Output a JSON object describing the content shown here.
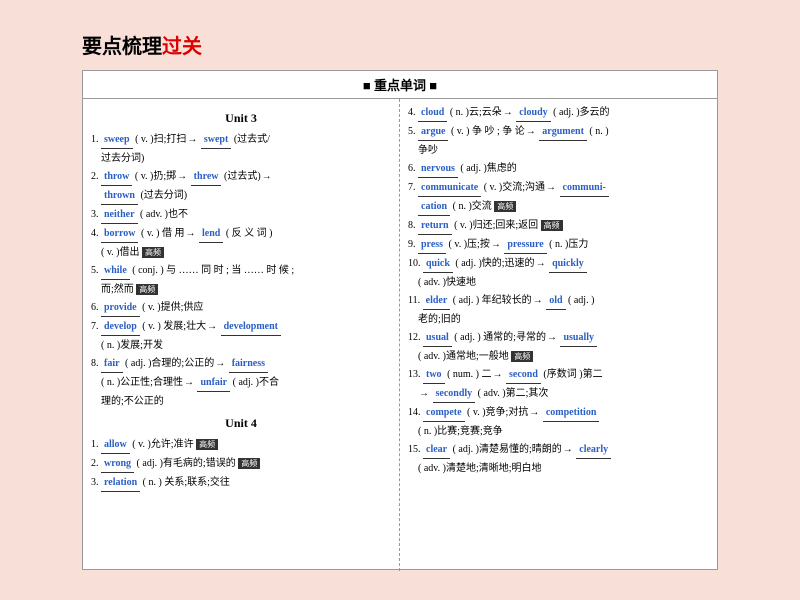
{
  "title_black": "要点梳理",
  "title_red": "过关",
  "header": "■ 重点单词 ■",
  "unit3": "Unit 3",
  "unit4": "Unit 4",
  "tag_high": "高频",
  "left": {
    "l1a": "sweep",
    "l1b": "( v. )扫;打扫",
    "l1c": "swept",
    "l1d": "(过去式/",
    "l1e": "过去分词)",
    "l2a": "throw",
    "l2b": "( v. )扔;掷",
    "l2c": "threw",
    "l2d": "(过去式)",
    "l2e": "thrown",
    "l2f": "(过去分词)",
    "l3a": "neither",
    "l3b": "( adv. )也不",
    "l4a": "borrow",
    "l4b": "( v. ) 借 用",
    "l4c": "lend",
    "l4d": "( 反 义 词 )",
    "l4e": "( v. )借出",
    "l5a": "while",
    "l5b": "( conj. ) 与 …… 同 时 ; 当 …… 时 候 ;",
    "l5c": "而;然而",
    "l6a": "provide",
    "l6b": "( v. )提供;供应",
    "l7a": "develop",
    "l7b": "( v. ) 发展;壮大",
    "l7c": "development",
    "l7d": "( n. )发展;开发",
    "l8a": "fair",
    "l8b": "( adj. )合理的;公正的",
    "l8c": "fairness",
    "l8d": "( n. )公正性;合理性",
    "l8e": "unfair",
    "l8f": "( adj. )不合",
    "l8g": "理的;不公正的",
    "u4_1a": "allow",
    "u4_1b": "( v. )允许;准许",
    "u4_2a": "wrong",
    "u4_2b": "( adj. )有毛病的;错误的",
    "u4_3a": "relation",
    "u4_3b": "( n. ) 关系;联系;交往"
  },
  "right": {
    "r4a": "cloud",
    "r4b": "( n. )云;云朵",
    "r4c": "cloudy",
    "r4d": "( adj. )多云的",
    "r5a": "argue",
    "r5b": "( v. ) 争 吵 ; 争 论",
    "r5c": "argument",
    "r5d": "( n. )",
    "r5e": "争吵",
    "r6a": "nervous",
    "r6b": "( adj. )焦虑的",
    "r7a": "communicate",
    "r7b": "( v. )交流;沟通",
    "r7c": "communi-",
    "r7d": "cation",
    "r7e": "( n. )交流",
    "r8a": "return",
    "r8b": "( v. )归还;回来;返回",
    "r9a": "press",
    "r9b": "( v. )压;按",
    "r9c": "pressure",
    "r9d": "( n. )压力",
    "r10a": "quick",
    "r10b": "( adj. )快的;迅速的",
    "r10c": "quickly",
    "r10d": "( adv. )快速地",
    "r11a": "elder",
    "r11b": "( adj. ) 年纪较长的",
    "r11c": "old",
    "r11d": "( adj. )",
    "r11e": "老的;旧的",
    "r12a": "usual",
    "r12b": "( adj. ) 通常的;寻常的",
    "r12c": "usually",
    "r12d": "( adv. )通常地;一般地",
    "r13a": "two",
    "r13b": "( num. ) 二",
    "r13c": "second",
    "r13d": "(序数词 )第二",
    "r13e": "secondly",
    "r13f": "( adv. )第二;其次",
    "r14a": "compete",
    "r14b": "( v. )竞争;对抗",
    "r14c": "competition",
    "r14d": "( n. )比赛;竞赛;竞争",
    "r15a": "clear",
    "r15b": "( adj. )清楚易懂的;晴朗的",
    "r15c": "clearly",
    "r15d": "( adv. )清楚地;清晰地;明白地"
  }
}
